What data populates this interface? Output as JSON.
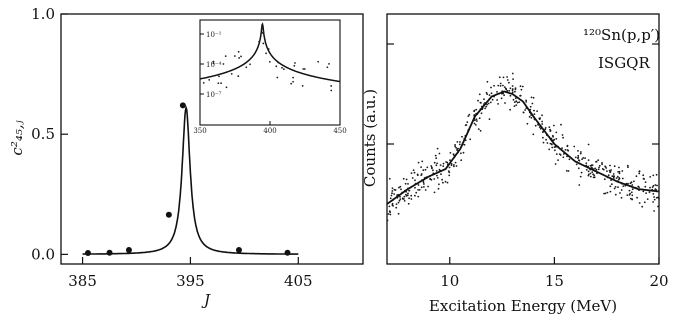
{
  "chart_data": [
    {
      "type": "line",
      "xlabel": "J",
      "ylabel": "c²₄₅,ⱼ",
      "xlim": [
        383,
        411
      ],
      "ylim": [
        -0.04,
        1.0
      ],
      "xticks": [
        385,
        395,
        405
      ],
      "xtick_labels": [
        "385",
        "395",
        "405"
      ],
      "yticks": [
        0.0,
        0.5,
        1.0
      ],
      "ytick_labels": [
        "0.0",
        "0.5",
        "1.0"
      ],
      "series": [
        {
          "kind": "points",
          "x": [
            385.5,
            387.5,
            389.3,
            393.0,
            394.3,
            399.5,
            404.0
          ],
          "y": [
            0.006,
            0.007,
            0.018,
            0.165,
            0.62,
            0.018,
            0.007
          ]
        },
        {
          "kind": "curve",
          "peak_x": 394.6,
          "peak_y": 0.61,
          "half_width": 0.45
        }
      ],
      "inset": {
        "xlim": [
          350,
          450
        ],
        "xticks": [
          350,
          400,
          450
        ],
        "xtick_labels": [
          "350",
          "400",
          "450"
        ],
        "ytick_labels": [
          "10⁻¹",
          "10⁻⁴",
          "10⁻⁷"
        ],
        "scale": "log"
      }
    },
    {
      "type": "scatter",
      "xlabel": "Excitation Energy (MeV)",
      "ylabel": "Counts (a.u.)",
      "xlim": [
        7,
        20
      ],
      "ylim": [
        0,
        1
      ],
      "xticks": [
        10,
        15,
        20
      ],
      "xtick_labels": [
        "10",
        "15",
        "20"
      ],
      "annotation_nucleus": "¹²⁰Sn(p,p′)",
      "annotation_mode": "ISGQR",
      "series": [
        {
          "kind": "fit",
          "x": [
            7,
            8,
            9,
            9.8,
            10.5,
            11.2,
            12,
            12.6,
            13,
            13.5,
            14,
            15,
            16,
            17,
            18,
            19,
            20
          ],
          "y": [
            0.24,
            0.3,
            0.35,
            0.38,
            0.46,
            0.59,
            0.67,
            0.69,
            0.68,
            0.65,
            0.59,
            0.48,
            0.41,
            0.37,
            0.33,
            0.3,
            0.29
          ]
        }
      ]
    }
  ]
}
